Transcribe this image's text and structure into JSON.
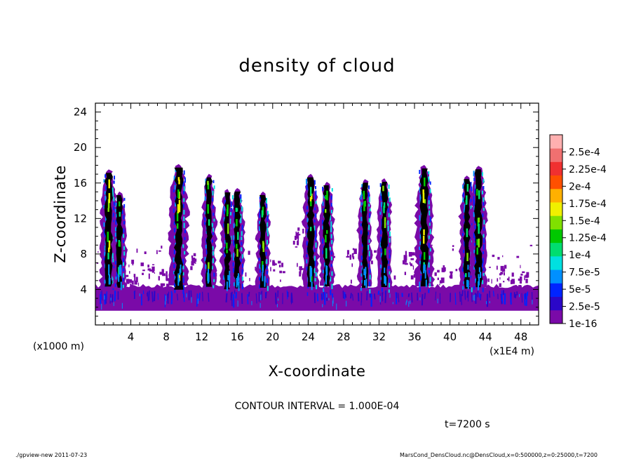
{
  "chart_data": {
    "type": "heatmap",
    "title": "density of cloud",
    "xlabel": "X-coordinate",
    "ylabel": "Z-coordinate",
    "x_unit_left": "(x1000 m)",
    "x_unit_right": "(x1E4 m)",
    "xlim": [
      0,
      50
    ],
    "ylim": [
      0,
      25
    ],
    "x_ticks": [
      "4",
      "8",
      "12",
      "16",
      "20",
      "24",
      "28",
      "32",
      "36",
      "40",
      "44",
      "48"
    ],
    "y_ticks": [
      "4",
      "8",
      "12",
      "16",
      "20",
      "24"
    ],
    "x_tick_values": [
      4,
      8,
      12,
      16,
      20,
      24,
      28,
      32,
      36,
      40,
      44,
      48
    ],
    "y_tick_values": [
      4,
      8,
      12,
      16,
      20,
      24
    ],
    "colorbar": {
      "labels": [
        "1e-16",
        "2.5e-5",
        "5e-5",
        "7.5e-5",
        "1e-4",
        "1.25e-4",
        "1.5e-4",
        "1.75e-4",
        "2e-4",
        "2.25e-4",
        "2.5e-4"
      ],
      "colors": [
        "#7a0aa8",
        "#2b07c8",
        "#0024ff",
        "#0090ff",
        "#00e0e0",
        "#00dd70",
        "#00c800",
        "#80e000",
        "#f0f000",
        "#ffb000",
        "#ff5000",
        "#f03030",
        "#f07070",
        "#ffb0b0"
      ]
    },
    "layer": {
      "z_bottom": 1.6,
      "z_top": 4.4
    },
    "columns": [
      {
        "x": 1.5,
        "top": 17.3,
        "peak": 6
      },
      {
        "x": 2.7,
        "top": 14.8,
        "peak": 3
      },
      {
        "x": 9.4,
        "top": 17.9,
        "peak": 8
      },
      {
        "x": 12.8,
        "top": 16.8,
        "peak": 4
      },
      {
        "x": 14.9,
        "top": 15.1,
        "peak": 3
      },
      {
        "x": 16.0,
        "top": 15.2,
        "peak": 4
      },
      {
        "x": 18.9,
        "top": 14.8,
        "peak": 3
      },
      {
        "x": 24.3,
        "top": 16.8,
        "peak": 5
      },
      {
        "x": 26.1,
        "top": 15.9,
        "peak": 4
      },
      {
        "x": 30.4,
        "top": 16.2,
        "peak": 3
      },
      {
        "x": 32.6,
        "top": 16.3,
        "peak": 4
      },
      {
        "x": 37.1,
        "top": 17.8,
        "peak": 7
      },
      {
        "x": 41.9,
        "top": 16.6,
        "peak": 4
      },
      {
        "x": 43.2,
        "top": 17.7,
        "peak": 6
      }
    ],
    "patches": [
      {
        "x": 22.8,
        "z": 10.2
      },
      {
        "x": 23.4,
        "z": 6.2
      },
      {
        "x": 5.8,
        "z": 6.4
      },
      {
        "x": 28.5,
        "z": 8.1
      },
      {
        "x": 11.5,
        "z": 8.0
      },
      {
        "x": 35.2,
        "z": 7.5
      },
      {
        "x": 46.3,
        "z": 5.8
      },
      {
        "x": 20.5,
        "z": 6.5
      },
      {
        "x": 39.5,
        "z": 6.0
      },
      {
        "x": 48.2,
        "z": 5.2
      },
      {
        "x": 7.8,
        "z": 5.5
      },
      {
        "x": 3.9,
        "z": 5.2
      }
    ]
  },
  "contour_interval": "CONTOUR INTERVAL = 1.000E-04",
  "time_label": "t=7200 s",
  "footer_left": "./gpview-new   2011-07-23",
  "footer_right": "MarsCond_DensCloud.nc@DensCloud,x=0:500000,z=0:25000,t=7200"
}
